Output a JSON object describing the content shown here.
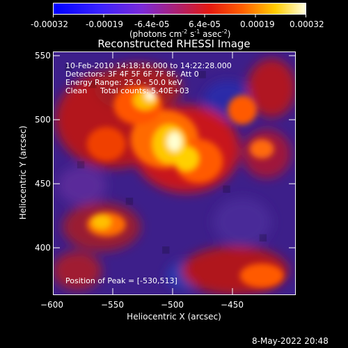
{
  "colorbar": {
    "ticks": [
      "-0.00032",
      "-0.00019",
      "-6.4e-05",
      "6.4e-05",
      "0.00019",
      "0.00032"
    ],
    "units_text": "(photons cm",
    "units_sup1": "-2",
    "units_mid": " s",
    "units_sup2": "-1",
    "units_end": " asec",
    "units_sup3": "-2",
    "units_close": ")"
  },
  "plot": {
    "title": "Reconstructed RHESSI Image",
    "overlay": {
      "time_range": "10-Feb-2010 14:18:16.000 to 14:22:28.000",
      "detectors": "Detectors: 3F 4F 5F 6F 7F 8F, Att 0",
      "energy_range": "Energy Range: 25.0 - 50.0 keV",
      "method": "Clean",
      "total_counts": "Total counts: 5.40E+03",
      "peak": "Position of Peak = [-530,513]"
    },
    "x_axis": {
      "label": "Heliocentric X (arcsec)",
      "ticks": [
        "−600",
        "−550",
        "−500",
        "−450"
      ]
    },
    "y_axis": {
      "label": "Heliocentric Y (arcsec)",
      "ticks": [
        "550",
        "500",
        "450",
        "400"
      ]
    }
  },
  "footer": {
    "timestamp": "8-May-2022 20:48"
  },
  "colors": {
    "background": "#000000",
    "axis": "#ffffff"
  }
}
